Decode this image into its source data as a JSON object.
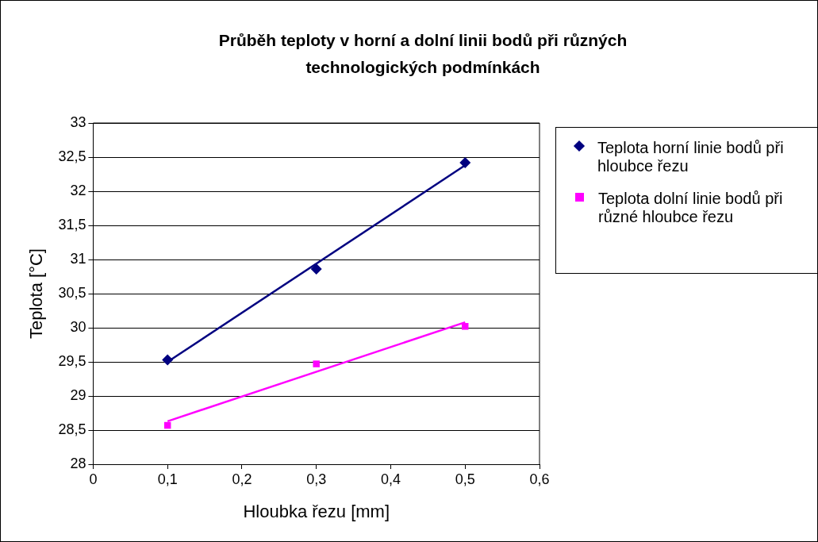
{
  "chart_data": {
    "type": "scatter",
    "title": "Průběh teploty v horní a dolní linii bodů při různých technologických podmínkách",
    "xlabel": "Hloubka řezu [mm]",
    "ylabel": "Teplota [°C]",
    "xlim": [
      0,
      0.6
    ],
    "xticks": [
      {
        "value": 0,
        "label": "0"
      },
      {
        "value": 0.1,
        "label": "0,1"
      },
      {
        "value": 0.2,
        "label": "0,2"
      },
      {
        "value": 0.3,
        "label": "0,3"
      },
      {
        "value": 0.4,
        "label": "0,4"
      },
      {
        "value": 0.5,
        "label": "0,5"
      },
      {
        "value": 0.6,
        "label": "0,6"
      }
    ],
    "ylim": [
      28,
      33
    ],
    "yticks": [
      {
        "value": 28,
        "label": "28"
      },
      {
        "value": 28.5,
        "label": "28,5"
      },
      {
        "value": 29,
        "label": "29"
      },
      {
        "value": 29.5,
        "label": "29,5"
      },
      {
        "value": 30,
        "label": "30"
      },
      {
        "value": 30.5,
        "label": "30,5"
      },
      {
        "value": 31,
        "label": "31"
      },
      {
        "value": 31.5,
        "label": "31,5"
      },
      {
        "value": 32,
        "label": "32"
      },
      {
        "value": 32.5,
        "label": "32,5"
      },
      {
        "value": 33,
        "label": "33"
      }
    ],
    "grid": "y",
    "legend": "right",
    "series": [
      {
        "name": "Teplota horní linie bodů při hloubce řezu",
        "color": "#000080",
        "marker": "diamond",
        "x": [
          0.1,
          0.3,
          0.5
        ],
        "values": [
          29.53,
          30.86,
          32.42
        ]
      },
      {
        "name": "Teplota dolní linie bodů při různé hloubce řezu",
        "color": "#ff00ff",
        "marker": "square",
        "x": [
          0.1,
          0.3,
          0.5
        ],
        "values": [
          28.57,
          29.47,
          30.02
        ]
      },
      {
        "type": "line",
        "color": "#000080",
        "marker": "none",
        "x": [
          0.1,
          0.5
        ],
        "values": [
          29.5,
          32.38
        ]
      },
      {
        "type": "line",
        "color": "#ff00ff",
        "marker": "none",
        "x": [
          0.1,
          0.5
        ],
        "values": [
          28.63,
          30.08
        ]
      }
    ]
  }
}
